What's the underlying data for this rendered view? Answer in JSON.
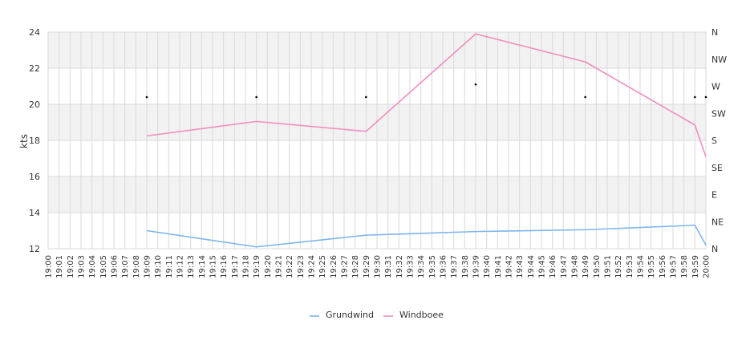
{
  "chart_data": {
    "type": "line",
    "ylabel": "kts",
    "ylim": [
      12,
      24
    ],
    "yticks": [
      "12",
      "14",
      "16",
      "18",
      "20",
      "22",
      "24"
    ],
    "right_axis_labels": [
      "N",
      "NE",
      "E",
      "SE",
      "S",
      "SW",
      "W",
      "NW",
      "N"
    ],
    "x_ticks": [
      "19:00",
      "19:01",
      "19:02",
      "19:03",
      "19:04",
      "19:05",
      "19:06",
      "19:07",
      "19:08",
      "19:09",
      "19:10",
      "19:11",
      "19:12",
      "19:13",
      "19:14",
      "19:15",
      "19:16",
      "19:17",
      "19:18",
      "19:19",
      "19:20",
      "19:21",
      "19:22",
      "19:23",
      "19:24",
      "19:25",
      "19:26",
      "19:27",
      "19:28",
      "19:29",
      "19:30",
      "19:31",
      "19:32",
      "19:33",
      "19:34",
      "19:35",
      "19:36",
      "19:37",
      "19:38",
      "19:39",
      "19:40",
      "19:41",
      "19:42",
      "19:43",
      "19:44",
      "19:45",
      "19:46",
      "19:47",
      "19:48",
      "19:49",
      "19:50",
      "19:51",
      "19:52",
      "19:53",
      "19:54",
      "19:55",
      "19:56",
      "19:57",
      "19:58",
      "19:59",
      "20:00"
    ],
    "grid": true,
    "legend_position": "bottom",
    "series": [
      {
        "name": "Grundwind",
        "color": "#7cb5ec",
        "x": [
          "19:09",
          "19:19",
          "19:29",
          "19:39",
          "19:49",
          "19:59",
          "20:00"
        ],
        "values": [
          13.0,
          12.1,
          12.75,
          12.95,
          13.05,
          13.3,
          12.2
        ]
      },
      {
        "name": "Windboee",
        "color": "#f28cc0",
        "x": [
          "19:09",
          "19:19",
          "19:29",
          "19:39",
          "19:49",
          "19:59",
          "20:00"
        ],
        "values": [
          18.25,
          19.05,
          18.5,
          23.9,
          22.35,
          18.85,
          17.1
        ]
      }
    ],
    "direction_markers": {
      "x": [
        "19:09",
        "19:19",
        "19:29",
        "19:39",
        "19:49",
        "19:59",
        "20:00"
      ],
      "values": [
        20.4,
        20.4,
        20.4,
        21.1,
        20.4,
        20.4,
        20.4
      ]
    }
  }
}
